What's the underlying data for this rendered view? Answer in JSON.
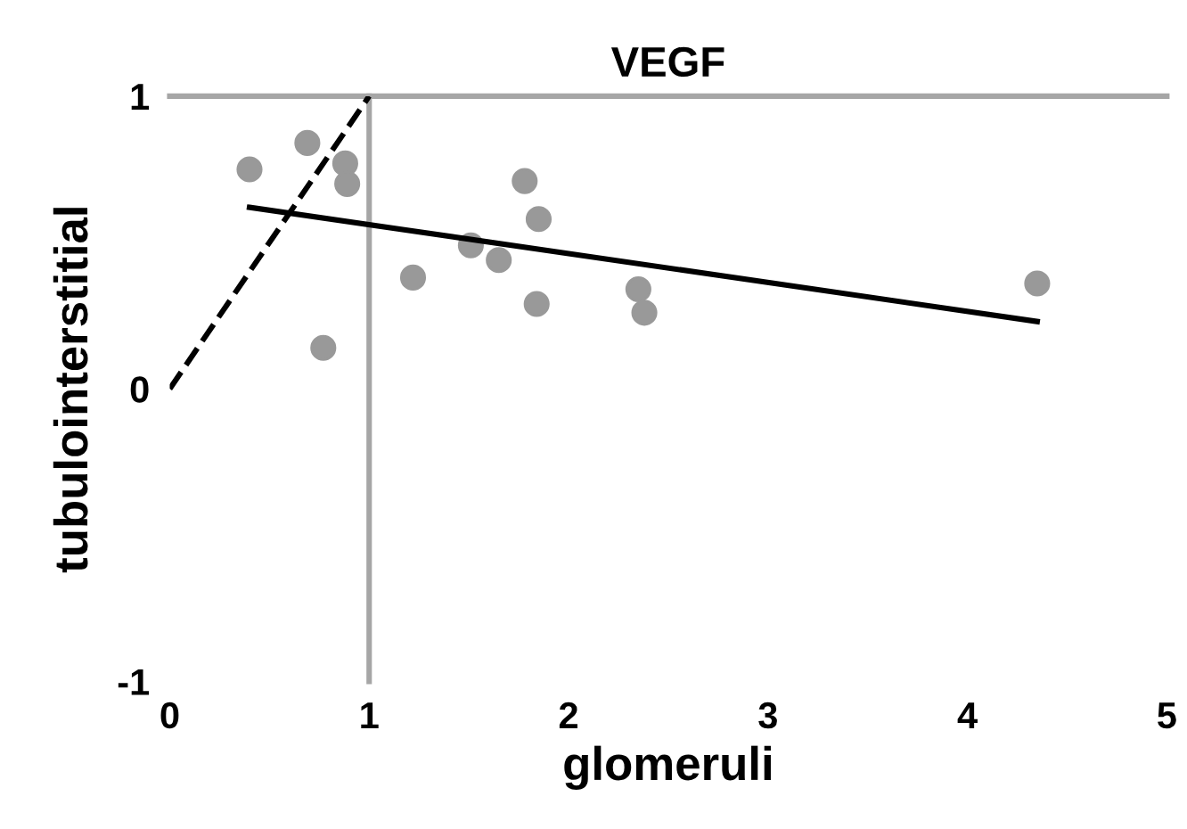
{
  "chart_data": {
    "type": "scatter",
    "title": "VEGF",
    "xlabel": "glomeruli",
    "ylabel": "tubulointerstitial",
    "xlim": [
      0,
      5
    ],
    "ylim": [
      -1,
      1
    ],
    "xticks": [
      0,
      1,
      2,
      3,
      4,
      5
    ],
    "yticks": [
      -1,
      0,
      1
    ],
    "grid": false,
    "legend": false,
    "marker": "circle",
    "series": [
      {
        "color": "#999999",
        "x": [
          0.4,
          0.69,
          0.88,
          0.89,
          0.77,
          1.22,
          1.51,
          1.65,
          1.78,
          1.85,
          1.84,
          2.35,
          2.38,
          4.35
        ],
        "values": [
          0.75,
          0.84,
          0.77,
          0.7,
          0.14,
          0.38,
          0.49,
          0.44,
          0.71,
          0.58,
          0.29,
          0.34,
          0.26,
          0.36
        ]
      },
      {
        "type": "line",
        "color": "#000000",
        "line_style": "solid",
        "marker": "none",
        "x": [
          0.4,
          4.35
        ],
        "values": [
          0.62,
          0.23
        ]
      },
      {
        "type": "line",
        "color": "#000000",
        "line_style": "dashed",
        "marker": "none",
        "x": [
          0,
          1
        ],
        "values": [
          0,
          1
        ]
      }
    ],
    "ref_lines": [
      {
        "axis": "x",
        "value": 1,
        "color": "#a6a6a6"
      }
    ]
  }
}
